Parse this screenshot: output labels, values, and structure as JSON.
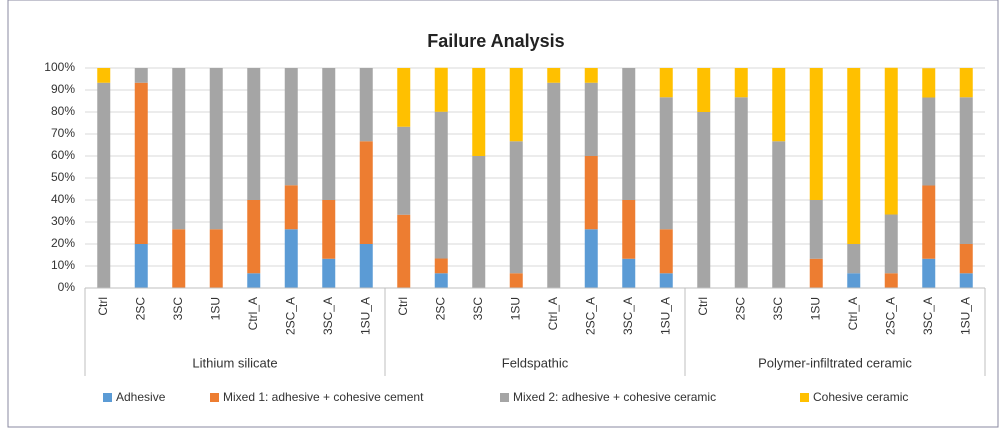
{
  "chart_data": {
    "type": "stacked_bar",
    "title": "Failure Analysis",
    "categories": [
      "Ctrl",
      "2SC",
      "3SC",
      "1SU",
      "Ctrl_A",
      "2SC_A",
      "3SC_A",
      "1SU_A",
      "Ctrl",
      "2SC",
      "3SC",
      "1SU",
      "Ctrl_A",
      "2SC_A",
      "3SC_A",
      "1SU_A",
      "Ctrl",
      "2SC",
      "3SC",
      "1SU",
      "Ctrl_A",
      "2SC_A",
      "3SC_A",
      "1SU_A"
    ],
    "groups": [
      "Lithium silicate",
      "Feldspathic",
      "Polymer-infiltrated ceramic"
    ],
    "series": [
      {
        "name": "Adhesive",
        "color": "#5b9bd5",
        "values": [
          0,
          20,
          0,
          0,
          6.7,
          26.7,
          13.3,
          20,
          0,
          6.7,
          0,
          0,
          0,
          26.7,
          13.3,
          6.7,
          0,
          0,
          0,
          0,
          6.7,
          0,
          13.3,
          6.7
        ]
      },
      {
        "name": "Mixed 1: adhesive + cohesive cement",
        "color": "#ed7d31",
        "values": [
          0,
          73.3,
          26.7,
          26.7,
          33.3,
          20,
          26.7,
          46.7,
          33.3,
          6.7,
          0,
          6.7,
          0,
          33.3,
          26.7,
          20,
          0,
          0,
          0,
          13.3,
          0,
          6.7,
          33.3,
          13.3
        ]
      },
      {
        "name": "Mixed 2: adhesive + cohesive ceramic",
        "color": "#a5a5a5",
        "values": [
          93.3,
          6.7,
          73.3,
          73.3,
          60,
          53.3,
          60,
          33.3,
          40,
          66.7,
          60,
          60,
          93.3,
          33.3,
          60,
          60,
          80,
          86.7,
          66.7,
          26.7,
          13.3,
          26.7,
          40,
          66.7
        ]
      },
      {
        "name": "Cohesive ceramic",
        "color": "#ffc000",
        "values": [
          6.7,
          0,
          0,
          0,
          0,
          0,
          0,
          0,
          26.7,
          20,
          40,
          33.3,
          6.7,
          6.7,
          0,
          13.3,
          20,
          13.3,
          33.3,
          60,
          80,
          66.7,
          13.3,
          13.3
        ]
      }
    ],
    "ylim": [
      0,
      100
    ],
    "yticks": [
      {
        "value": 0,
        "label": "0%"
      },
      {
        "value": 10,
        "label": "10%"
      },
      {
        "value": 20,
        "label": "20%"
      },
      {
        "value": 30,
        "label": "30%"
      },
      {
        "value": 40,
        "label": "40%"
      },
      {
        "value": 50,
        "label": "50%"
      },
      {
        "value": 60,
        "label": "60%"
      },
      {
        "value": 70,
        "label": "70%"
      },
      {
        "value": 80,
        "label": "80%"
      },
      {
        "value": 90,
        "label": "90%"
      },
      {
        "value": 100,
        "label": "100%"
      }
    ],
    "grid": true
  }
}
